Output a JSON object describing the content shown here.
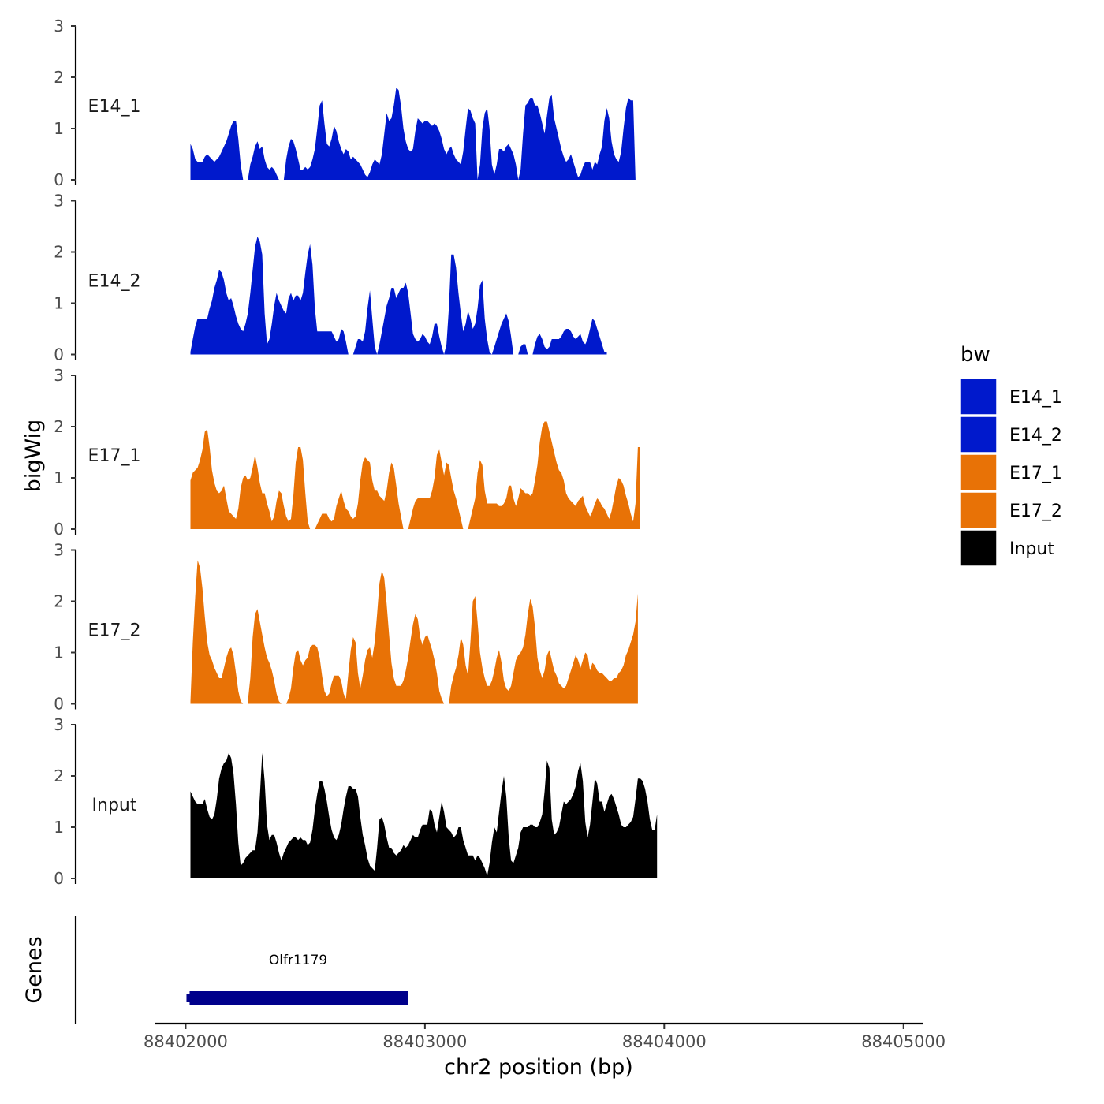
{
  "chart_data": {
    "type": "area",
    "ylabel": "bigWig",
    "xlabel": "chr2 position (bp)",
    "xlim": [
      88401870,
      88405080
    ],
    "ylim": [
      0,
      3
    ],
    "x_ticks": [
      88402000,
      88403000,
      88404000,
      88405000
    ],
    "y_ticks": [
      0,
      1,
      2,
      3
    ],
    "colors": {
      "E14_1": "#0019CC",
      "E14_2": "#0019CC",
      "E17_1": "#E87206",
      "E17_2": "#E87206",
      "Input": "#000000",
      "gene": "#00008B"
    },
    "legend": {
      "title": "bw",
      "entries": [
        "E14_1",
        "E14_2",
        "E17_1",
        "E17_2",
        "Input"
      ],
      "placement": "right"
    },
    "x_start": 88402020,
    "x_step": 10,
    "series": [
      {
        "name": "E14_1",
        "values": [
          0.7,
          0.6,
          0.4,
          0.35,
          0.35,
          0.35,
          0.45,
          0.5,
          0.45,
          0.4,
          0.35,
          0.4,
          0.45,
          0.55,
          0.65,
          0.75,
          0.9,
          1.05,
          1.15,
          1.15,
          0.8,
          0.3,
          0,
          0,
          0,
          0.3,
          0.45,
          0.65,
          0.75,
          0.6,
          0.65,
          0.4,
          0.25,
          0.2,
          0.25,
          0.2,
          0.1,
          0,
          null,
          0,
          0.4,
          0.65,
          0.8,
          0.75,
          0.6,
          0.4,
          0.2,
          0.2,
          0.25,
          0.2,
          0.25,
          0.4,
          0.6,
          1.0,
          1.45,
          1.55,
          1.1,
          0.7,
          0.65,
          0.8,
          1.05,
          0.95,
          0.75,
          0.6,
          0.5,
          0.6,
          0.55,
          0.4,
          0.45,
          0.4,
          0.35,
          0.3,
          0.2,
          0.1,
          0.05,
          0.15,
          0.3,
          0.4,
          0.35,
          0.3,
          0.5,
          0.9,
          1.3,
          1.15,
          1.2,
          1.45,
          1.8,
          1.75,
          1.45,
          1.0,
          0.75,
          0.6,
          0.55,
          0.6,
          0.95,
          1.2,
          1.15,
          1.1,
          1.15,
          1.15,
          1.1,
          1.05,
          1.1,
          1.05,
          0.95,
          0.8,
          0.6,
          0.5,
          0.6,
          0.65,
          0.5,
          0.4,
          0.35,
          0.3,
          0.55,
          1.0,
          1.4,
          1.35,
          1.2,
          1.1,
          0,
          0.3,
          1.0,
          1.3,
          1.4,
          1.0,
          0.3,
          0.1,
          0.3,
          0.6,
          0.6,
          0.55,
          0.65,
          0.7,
          0.6,
          0.5,
          0.3,
          0,
          0.2,
          0.9,
          1.45,
          1.5,
          1.6,
          1.6,
          1.45,
          1.45,
          1.3,
          1.1,
          0.9,
          1.25,
          1.6,
          1.65,
          1.2,
          1.0,
          0.8,
          0.6,
          0.45,
          0.35,
          0.4,
          0.5,
          0.35,
          0.2,
          0.05,
          0.1,
          0.25,
          0.35,
          0.35,
          0.35,
          0.2,
          0.35,
          0.3,
          0.5,
          0.65,
          1.15,
          1.4,
          1.2,
          0.75,
          0.5,
          0.4,
          0.35,
          0.55,
          1.0,
          1.4,
          1.6,
          1.55,
          1.55,
          0
        ]
      },
      {
        "name": "E14_2",
        "values": [
          0.05,
          0.3,
          0.55,
          0.7,
          0.7,
          0.7,
          0.7,
          0.7,
          0.9,
          1.05,
          1.3,
          1.45,
          1.65,
          1.6,
          1.45,
          1.2,
          1.05,
          1.1,
          0.95,
          0.75,
          0.6,
          0.5,
          0.45,
          0.6,
          0.8,
          1.2,
          1.65,
          2.1,
          2.3,
          2.2,
          1.95,
          0.8,
          0.2,
          0.3,
          0.6,
          0.95,
          1.2,
          1.05,
          0.95,
          0.85,
          0.8,
          1.1,
          1.2,
          1.05,
          1.15,
          1.15,
          1.05,
          1.2,
          1.6,
          1.95,
          2.15,
          1.75,
          0.9,
          0.45,
          0.45,
          0.45,
          0.45,
          0.45,
          0.45,
          0.45,
          0.35,
          0.25,
          0.3,
          0.5,
          0.45,
          0.25,
          0,
          null,
          0,
          0.15,
          0.3,
          0.3,
          0.25,
          0.45,
          0.9,
          1.25,
          0.7,
          0.15,
          0,
          0.2,
          0.45,
          0.7,
          0.95,
          1.1,
          1.3,
          1.3,
          1.1,
          1.2,
          1.3,
          1.3,
          1.4,
          1.2,
          0.8,
          0.4,
          0.3,
          0.25,
          0.3,
          0.4,
          0.35,
          0.25,
          0.2,
          0.35,
          0.6,
          0.6,
          0.35,
          0.15,
          0,
          0.2,
          0.9,
          1.95,
          1.95,
          1.7,
          1.2,
          0.8,
          0.45,
          0.6,
          0.85,
          0.7,
          0.5,
          0.6,
          0.9,
          1.35,
          1.45,
          0.7,
          0.3,
          0.05,
          0,
          0.15,
          0.3,
          0.45,
          0.6,
          0.7,
          0.8,
          0.65,
          0.35,
          0,
          null,
          0,
          0.15,
          0.2,
          0.2,
          0,
          null,
          0,
          0.2,
          0.35,
          0.4,
          0.3,
          0.15,
          0.1,
          0.15,
          0.3,
          0.3,
          0.3,
          0.3,
          0.35,
          0.45,
          0.5,
          0.5,
          0.45,
          0.35,
          0.3,
          0.35,
          0.4,
          0.25,
          0.2,
          0.3,
          0.5,
          0.7,
          0.65,
          0.5,
          0.35,
          0.2,
          0.05,
          0.05
        ]
      },
      {
        "name": "E17_1",
        "values": [
          0.95,
          1.1,
          1.15,
          1.2,
          1.35,
          1.55,
          1.9,
          1.95,
          1.6,
          1.15,
          0.9,
          0.75,
          0.7,
          0.75,
          0.85,
          0.6,
          0.35,
          0.3,
          0.25,
          0.2,
          0.4,
          0.8,
          1.0,
          1.05,
          0.95,
          1.0,
          1.2,
          1.45,
          1.2,
          0.9,
          0.7,
          0.7,
          0.5,
          0.35,
          0.15,
          0.25,
          0.55,
          0.75,
          0.7,
          0.45,
          0.25,
          0.15,
          0.2,
          0.65,
          1.3,
          1.6,
          1.6,
          1.35,
          0.7,
          0.15,
          0,
          null,
          0,
          0.1,
          0.2,
          0.3,
          0.3,
          0.3,
          0.2,
          0.15,
          0.2,
          0.45,
          0.6,
          0.75,
          0.55,
          0.4,
          0.35,
          0.25,
          0.2,
          0.25,
          0.5,
          0.95,
          1.3,
          1.4,
          1.35,
          1.3,
          0.95,
          0.75,
          0.75,
          0.65,
          0.6,
          0.55,
          0.75,
          1.1,
          1.3,
          1.2,
          0.85,
          0.5,
          0.25,
          0,
          null,
          0,
          0.2,
          0.4,
          0.55,
          0.6,
          0.6,
          0.6,
          0.6,
          0.6,
          0.6,
          0.75,
          1.0,
          1.45,
          1.55,
          1.3,
          1.05,
          1.3,
          1.25,
          1.0,
          0.75,
          0.6,
          0.4,
          0.2,
          0,
          null,
          0,
          0.2,
          0.4,
          0.6,
          1.1,
          1.35,
          1.25,
          0.75,
          0.5,
          0.5,
          0.5,
          0.5,
          0.5,
          0.45,
          0.45,
          0.5,
          0.6,
          0.85,
          0.85,
          0.6,
          0.45,
          0.6,
          0.8,
          0.75,
          0.7,
          0.7,
          0.65,
          0.7,
          0.95,
          1.25,
          1.7,
          2.0,
          2.1,
          2.1,
          1.9,
          1.7,
          1.5,
          1.3,
          1.15,
          1.1,
          0.95,
          0.7,
          0.6,
          0.55,
          0.5,
          0.45,
          0.55,
          0.6,
          0.65,
          0.45,
          0.35,
          0.25,
          0.35,
          0.5,
          0.6,
          0.55,
          0.45,
          0.4,
          0.3,
          0.2,
          0.35,
          0.6,
          0.85,
          1.0,
          0.95,
          0.85,
          0.65,
          0.5,
          0.3,
          0.15,
          0.5,
          1.6,
          1.6
        ]
      },
      {
        "name": "E17_2",
        "values": [
          0.05,
          1.2,
          2.1,
          2.8,
          2.65,
          2.25,
          1.7,
          1.2,
          0.95,
          0.85,
          0.7,
          0.6,
          0.5,
          0.5,
          0.7,
          0.9,
          1.05,
          1.1,
          0.95,
          0.6,
          0.25,
          0.05,
          0,
          null,
          0.05,
          0.5,
          1.3,
          1.75,
          1.85,
          1.6,
          1.35,
          1.1,
          0.9,
          0.8,
          0.65,
          0.45,
          0.2,
          0.05,
          0,
          null,
          0,
          0.1,
          0.3,
          0.7,
          1.0,
          1.05,
          0.85,
          0.75,
          0.85,
          0.9,
          1.1,
          1.15,
          1.15,
          1.1,
          0.9,
          0.55,
          0.25,
          0.15,
          0.2,
          0.4,
          0.55,
          0.55,
          0.55,
          0.45,
          0.2,
          0.1,
          0.6,
          1.05,
          1.3,
          1.2,
          0.6,
          0.3,
          0.55,
          0.85,
          1.05,
          1.1,
          0.9,
          1.2,
          1.75,
          2.35,
          2.6,
          2.45,
          1.95,
          1.35,
          0.8,
          0.5,
          0.35,
          0.35,
          0.35,
          0.45,
          0.65,
          0.9,
          1.25,
          1.55,
          1.75,
          1.65,
          1.3,
          1.15,
          1.3,
          1.35,
          1.2,
          1.05,
          0.85,
          0.6,
          0.25,
          0.1,
          0,
          null,
          0,
          0.35,
          0.55,
          0.7,
          0.95,
          1.3,
          1.15,
          0.75,
          0.55,
          1.2,
          2.0,
          2.1,
          1.6,
          1.0,
          0.7,
          0.5,
          0.35,
          0.35,
          0.45,
          0.65,
          0.9,
          1.05,
          0.8,
          0.45,
          0.3,
          0.25,
          0.35,
          0.6,
          0.85,
          0.95,
          1.0,
          1.1,
          1.35,
          1.75,
          2.05,
          1.9,
          1.5,
          0.9,
          0.65,
          0.5,
          0.65,
          0.95,
          1.05,
          0.85,
          0.65,
          0.55,
          0.4,
          0.35,
          0.3,
          0.35,
          0.5,
          0.65,
          0.8,
          0.95,
          0.85,
          0.7,
          0.85,
          1.0,
          0.95,
          0.65,
          0.8,
          0.75,
          0.65,
          0.6,
          0.6,
          0.55,
          0.5,
          0.45,
          0.45,
          0.5,
          0.5,
          0.6,
          0.65,
          0.75,
          0.95,
          1.05,
          1.2,
          1.35,
          1.6,
          2.15
        ]
      },
      {
        "name": "Input",
        "values": [
          1.7,
          1.6,
          1.5,
          1.45,
          1.45,
          1.45,
          1.55,
          1.35,
          1.2,
          1.15,
          1.25,
          1.55,
          1.95,
          2.15,
          2.25,
          2.3,
          2.45,
          2.35,
          2.05,
          1.45,
          0.7,
          0.25,
          0.3,
          0.4,
          0.45,
          0.5,
          0.55,
          0.55,
          0.9,
          1.6,
          2.45,
          1.9,
          1.05,
          0.75,
          0.85,
          0.85,
          0.7,
          0.5,
          0.35,
          0.5,
          0.6,
          0.7,
          0.75,
          0.8,
          0.8,
          0.75,
          0.8,
          0.75,
          0.75,
          0.65,
          0.7,
          0.95,
          1.35,
          1.65,
          1.9,
          1.9,
          1.75,
          1.5,
          1.2,
          0.95,
          0.8,
          0.75,
          0.85,
          1.05,
          1.35,
          1.6,
          1.8,
          1.8,
          1.75,
          1.75,
          1.6,
          1.2,
          0.85,
          0.65,
          0.4,
          0.25,
          0.2,
          0.15,
          0.6,
          1.15,
          1.2,
          1.05,
          0.8,
          0.6,
          0.6,
          0.5,
          0.45,
          0.5,
          0.55,
          0.65,
          0.6,
          0.65,
          0.75,
          0.85,
          0.8,
          0.8,
          0.95,
          1.05,
          1.05,
          1.05,
          1.35,
          1.3,
          1.05,
          0.9,
          1.2,
          1.5,
          1.3,
          1.0,
          0.95,
          0.9,
          0.8,
          0.85,
          1.0,
          1.0,
          0.75,
          0.6,
          0.45,
          0.45,
          0.45,
          0.35,
          0.45,
          0.4,
          0.3,
          0.2,
          0.05,
          0.3,
          0.7,
          1.0,
          0.9,
          1.3,
          1.7,
          2.0,
          1.6,
          0.8,
          0.35,
          0.3,
          0.45,
          0.6,
          0.9,
          1.0,
          1.0,
          1.0,
          1.05,
          1.05,
          1.0,
          1.0,
          1.1,
          1.25,
          1.7,
          2.3,
          2.15,
          1.15,
          0.85,
          0.9,
          1.0,
          1.25,
          1.5,
          1.45,
          1.5,
          1.55,
          1.65,
          1.8,
          2.1,
          2.25,
          1.9,
          1.1,
          0.8,
          1.05,
          1.5,
          1.95,
          1.85,
          1.5,
          1.5,
          1.3,
          1.45,
          1.6,
          1.65,
          1.55,
          1.4,
          1.25,
          1.05,
          1.0,
          1.0,
          1.05,
          1.1,
          1.2,
          1.55,
          1.95,
          1.95,
          1.9,
          1.75,
          1.5,
          1.15,
          0.95,
          0.95,
          1.25
        ]
      }
    ],
    "gene": {
      "label": "Olfr1179",
      "start": 88402010,
      "end": 88402930,
      "track_label": "Genes"
    }
  }
}
